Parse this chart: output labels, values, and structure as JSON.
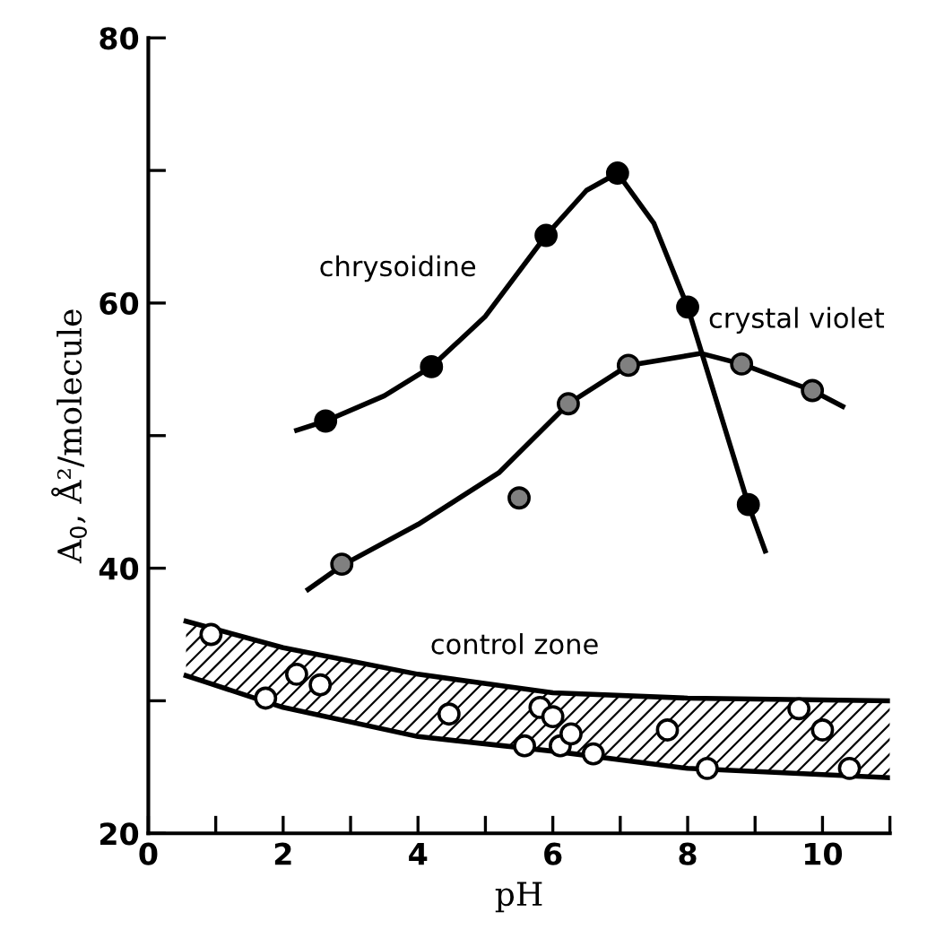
{
  "chart_data": {
    "type": "line",
    "xlabel": "pH",
    "ylabel": "A$_{0}$, Å²/molecule",
    "xlim": [
      0,
      11
    ],
    "ylim": [
      20,
      80
    ],
    "xticks": [
      0,
      {
        "value": 1,
        "label": null
      },
      2,
      {
        "value": 3,
        "label": null
      },
      4,
      {
        "value": 5,
        "label": null
      },
      6,
      {
        "value": 7,
        "label": null
      },
      8,
      {
        "value": 9,
        "label": null
      },
      10,
      {
        "value": 11,
        "label": null
      }
    ],
    "yticks": [
      20,
      {
        "value": 30,
        "label": null
      },
      40,
      {
        "value": 50,
        "label": null
      },
      60,
      {
        "value": 70,
        "label": null
      },
      80
    ],
    "grid": false,
    "legend": false,
    "series": [
      {
        "name": "chrysoidine",
        "color": "#000000",
        "x": [
          2.2,
          2.63,
          3.5,
          4.2,
          5.0,
          5.9,
          6.5,
          6.96,
          7.5,
          8.0,
          8.9,
          9.15
        ],
        "values": [
          50.4,
          51.1,
          53.0,
          55.2,
          59.0,
          65.1,
          68.5,
          69.8,
          66.0,
          59.7,
          44.8,
          41.3
        ]
      },
      {
        "type": "scatter",
        "marker": "circle",
        "color": "#000000",
        "x": [
          2.63,
          4.2,
          5.9,
          6.96,
          8.0,
          8.9
        ],
        "values": [
          51.1,
          55.2,
          65.1,
          69.8,
          59.7,
          44.8
        ]
      },
      {
        "name": "crystal violet",
        "color": "#000000",
        "x": [
          2.37,
          2.87,
          4.0,
          5.2,
          6.23,
          7.12,
          8.2,
          8.8,
          9.85,
          10.3
        ],
        "values": [
          38.4,
          40.2,
          43.3,
          47.2,
          52.4,
          55.3,
          56.2,
          55.4,
          53.4,
          52.2
        ]
      },
      {
        "type": "scatter",
        "marker": "circle",
        "color": "#808080",
        "x": [
          2.87,
          5.5,
          6.23,
          7.12,
          8.8,
          9.85
        ],
        "values": [
          40.3,
          45.3,
          52.4,
          55.3,
          55.4,
          53.4
        ]
      },
      {
        "name": "control zone",
        "color": "#000000",
        "x": [
          0.56,
          2,
          4,
          6,
          8,
          11
        ],
        "values": [
          36.0,
          34.0,
          32.0,
          30.6,
          30.2,
          30.0
        ]
      },
      {
        "color": "#000000",
        "x": [
          0.56,
          2,
          4,
          6,
          8,
          11
        ],
        "values": [
          31.9,
          29.5,
          27.3,
          26.2,
          24.9,
          24.2
        ]
      },
      {
        "type": "scatter",
        "marker": "circle",
        "color": "#ffffff",
        "x": [
          0.93,
          1.74,
          2.2,
          2.55,
          4.46,
          5.81,
          6.0,
          5.58,
          6.11,
          6.27,
          6.6,
          7.7,
          8.29,
          9.65,
          10.0,
          10.4
        ],
        "values": [
          35.0,
          30.2,
          32.0,
          31.2,
          29.0,
          29.5,
          28.8,
          26.6,
          26.6,
          27.5,
          26.0,
          27.8,
          24.9,
          29.4,
          27.8,
          24.9
        ]
      }
    ]
  }
}
